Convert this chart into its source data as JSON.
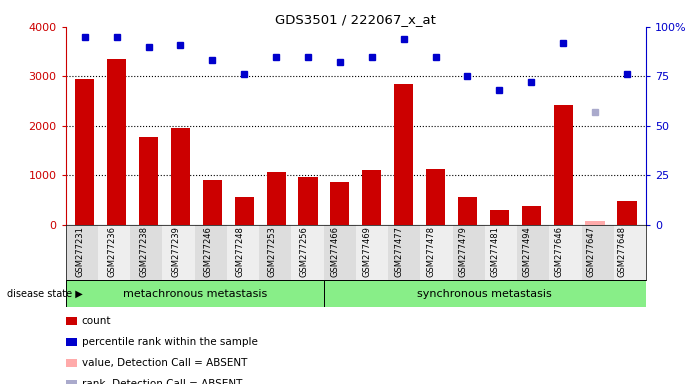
{
  "title": "GDS3501 / 222067_x_at",
  "samples": [
    "GSM277231",
    "GSM277236",
    "GSM277238",
    "GSM277239",
    "GSM277246",
    "GSM277248",
    "GSM277253",
    "GSM277256",
    "GSM277466",
    "GSM277469",
    "GSM277477",
    "GSM277478",
    "GSM277479",
    "GSM277481",
    "GSM277494",
    "GSM277646",
    "GSM277647",
    "GSM277648"
  ],
  "counts": [
    2950,
    3350,
    1780,
    1950,
    900,
    560,
    1070,
    960,
    870,
    1100,
    2850,
    1130,
    560,
    300,
    380,
    2420,
    80,
    470
  ],
  "is_absent": [
    false,
    false,
    false,
    false,
    false,
    false,
    false,
    false,
    false,
    false,
    false,
    false,
    false,
    false,
    false,
    false,
    true,
    false
  ],
  "percentile_ranks": [
    95,
    95,
    90,
    91,
    83,
    76,
    85,
    85,
    82,
    85,
    94,
    85,
    75,
    68,
    72,
    92,
    57,
    76
  ],
  "rank_is_absent": [
    false,
    false,
    false,
    false,
    false,
    false,
    false,
    false,
    false,
    false,
    false,
    false,
    false,
    false,
    false,
    false,
    true,
    false
  ],
  "bar_color": "#cc0000",
  "absent_bar_color": "#ffaaaa",
  "dot_color": "#0000cc",
  "absent_dot_color": "#aaaacc",
  "ylim_left": [
    0,
    4000
  ],
  "ylim_right": [
    0,
    100
  ],
  "yticks_left": [
    0,
    1000,
    2000,
    3000,
    4000
  ],
  "yticks_right": [
    0,
    25,
    50,
    75,
    100
  ],
  "group1_label": "metachronous metastasis",
  "group2_label": "synchronous metastasis",
  "group1_count": 8,
  "legend_items": [
    {
      "label": "count",
      "color": "#cc0000"
    },
    {
      "label": "percentile rank within the sample",
      "color": "#0000cc"
    },
    {
      "label": "value, Detection Call = ABSENT",
      "color": "#ffaaaa"
    },
    {
      "label": "rank, Detection Call = ABSENT",
      "color": "#aaaacc"
    }
  ],
  "bg_color": "#ffffff",
  "plot_bg_color": "#ffffff",
  "tick_area_color": "#cccccc",
  "group_bg_color": "#88ee88",
  "right_axis_color": "#0000cc",
  "left_axis_color": "#cc0000",
  "bar_width": 0.6
}
